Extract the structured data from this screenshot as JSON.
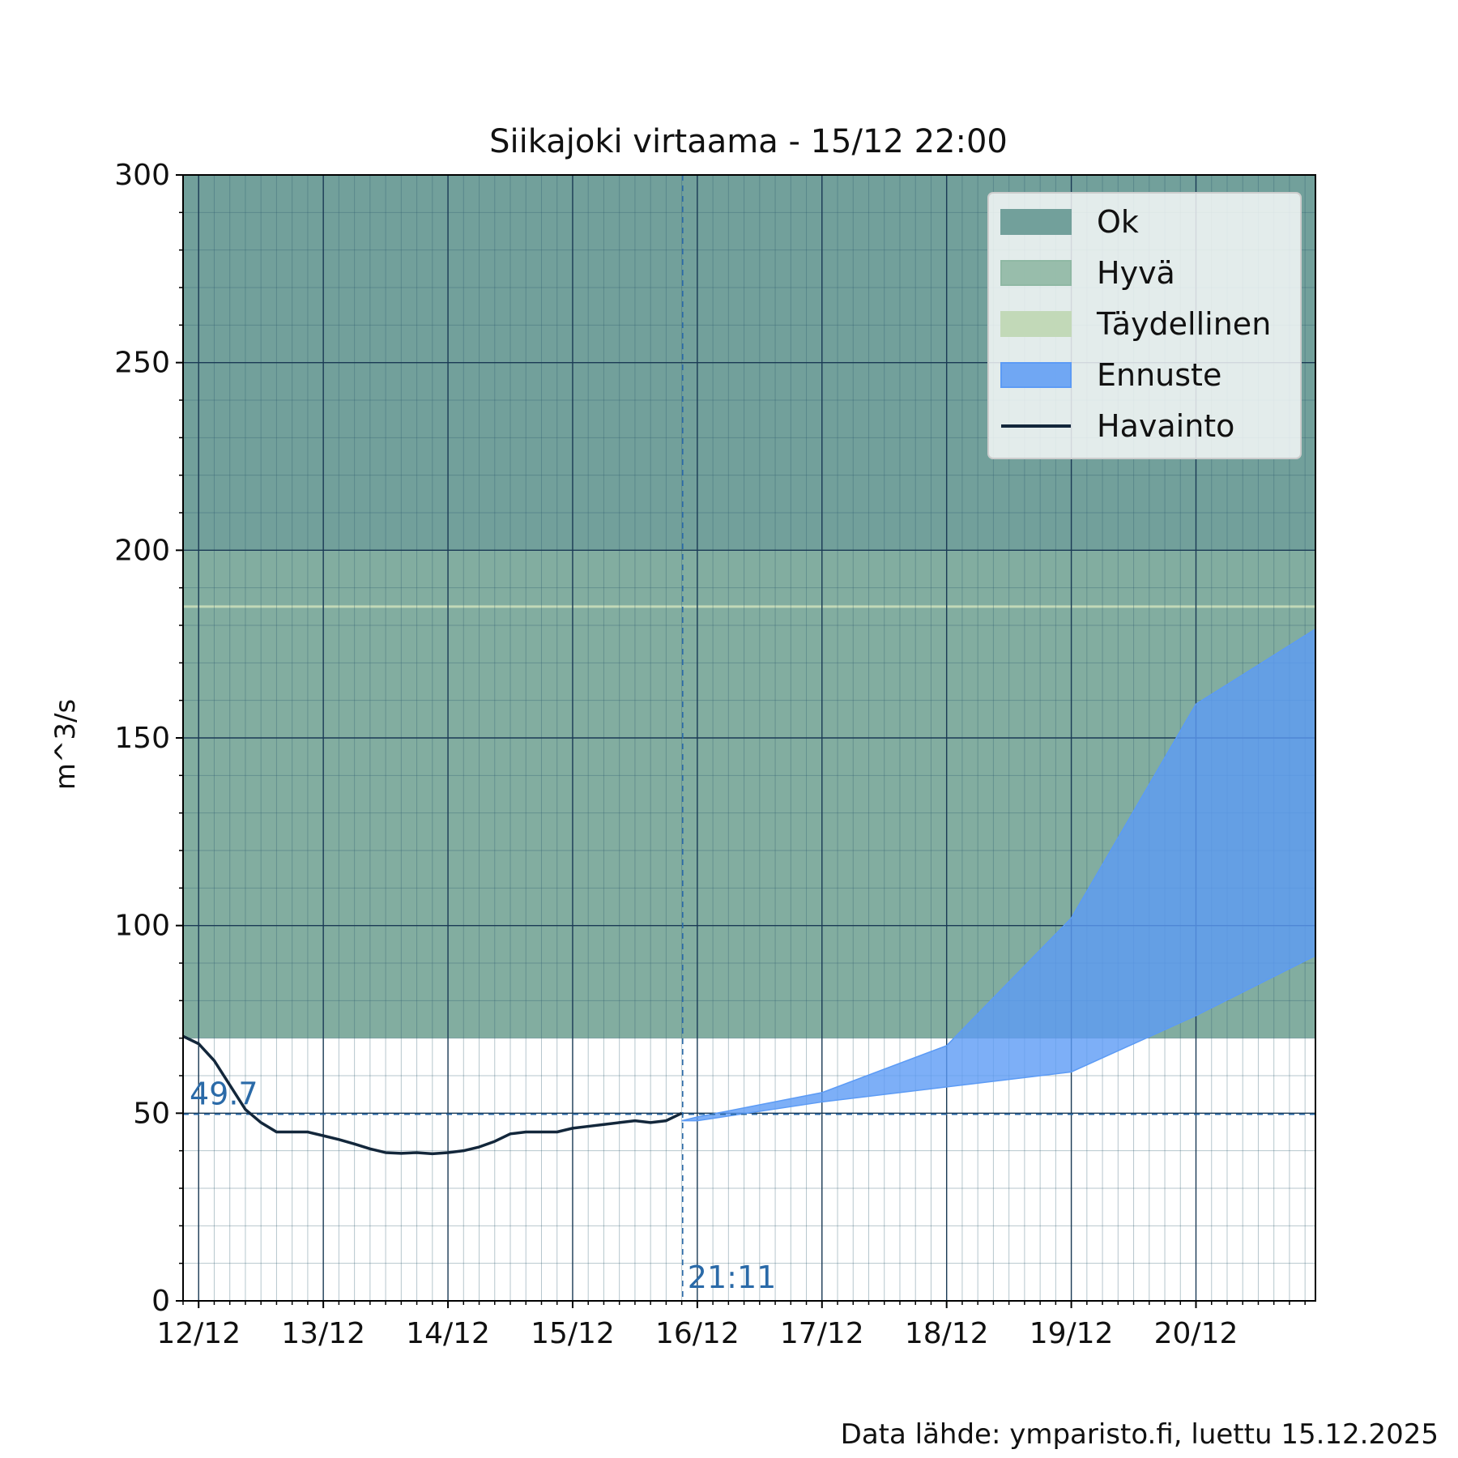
{
  "chart_data": {
    "type": "area",
    "title": "Siikajoki virtaama  -  15/12 22:00",
    "ylabel": "m^3/s",
    "xlabel": "",
    "ylim": [
      0,
      300
    ],
    "xlim": [
      "2025-12-11 21:00",
      "2025-12-20 23:00"
    ],
    "x_tick_labels": [
      "12/12",
      "13/12",
      "14/12",
      "15/12",
      "16/12",
      "17/12",
      "18/12",
      "19/12",
      "20/12"
    ],
    "y_tick_labels": [
      "0",
      "50",
      "100",
      "150",
      "200",
      "250",
      "300"
    ],
    "grid": true,
    "legend_position": "top-right",
    "bands": [
      {
        "name": "Ok",
        "y_range": [
          70,
          300
        ],
        "color": "#72a09b"
      },
      {
        "name": "Hyvä",
        "y_range": [
          70,
          200
        ],
        "color": "#8fb8a4"
      },
      {
        "name": "Täydellinen",
        "y": 185,
        "color": "#c2d9b8"
      }
    ],
    "forecast": {
      "name": "Ennuste",
      "color": "#5c9bf5",
      "x": [
        "2025-12-15 21:00",
        "2025-12-16 00:00",
        "2025-12-17 00:00",
        "2025-12-18 00:00",
        "2025-12-19 00:00",
        "2025-12-20 00:00",
        "2025-12-20 23:00"
      ],
      "lower": [
        48,
        48,
        53,
        57,
        61,
        76,
        92
      ],
      "upper": [
        48,
        49,
        55.5,
        68,
        102,
        159,
        179
      ]
    },
    "observation": {
      "name": "Havainto",
      "color": "#13273b",
      "x": [
        "2025-12-11 21:00",
        "2025-12-12 00:00",
        "2025-12-12 03:00",
        "2025-12-12 06:00",
        "2025-12-12 09:00",
        "2025-12-12 12:00",
        "2025-12-12 15:00",
        "2025-12-12 18:00",
        "2025-12-12 21:00",
        "2025-12-13 00:00",
        "2025-12-13 03:00",
        "2025-12-13 06:00",
        "2025-12-13 09:00",
        "2025-12-13 12:00",
        "2025-12-13 15:00",
        "2025-12-13 18:00",
        "2025-12-13 21:00",
        "2025-12-14 00:00",
        "2025-12-14 03:00",
        "2025-12-14 06:00",
        "2025-12-14 09:00",
        "2025-12-14 12:00",
        "2025-12-14 15:00",
        "2025-12-14 18:00",
        "2025-12-14 21:00",
        "2025-12-15 00:00",
        "2025-12-15 03:00",
        "2025-12-15 06:00",
        "2025-12-15 09:00",
        "2025-12-15 12:00",
        "2025-12-15 15:00",
        "2025-12-15 18:00",
        "2025-12-15 21:00"
      ],
      "y": [
        70.5,
        68.5,
        64,
        57.5,
        51,
        47.5,
        45,
        45,
        45,
        44,
        43,
        41.8,
        40.5,
        39.5,
        39.3,
        39.5,
        39.2,
        39.5,
        40,
        41,
        42.5,
        44.5,
        45,
        45,
        45,
        46,
        46.5,
        47,
        47.5,
        48,
        47.5,
        48,
        50
      ]
    },
    "reference_line": {
      "y": 49.7,
      "label": "49.7",
      "color": "#2a6aa8"
    },
    "current_time_line": {
      "x": "2025-12-15 21:11",
      "label": "21:11",
      "color": "#2a6aa8"
    }
  },
  "footer": {
    "source_text": "Data lähde: ymparisto.fi, luettu 15.12.2025"
  }
}
